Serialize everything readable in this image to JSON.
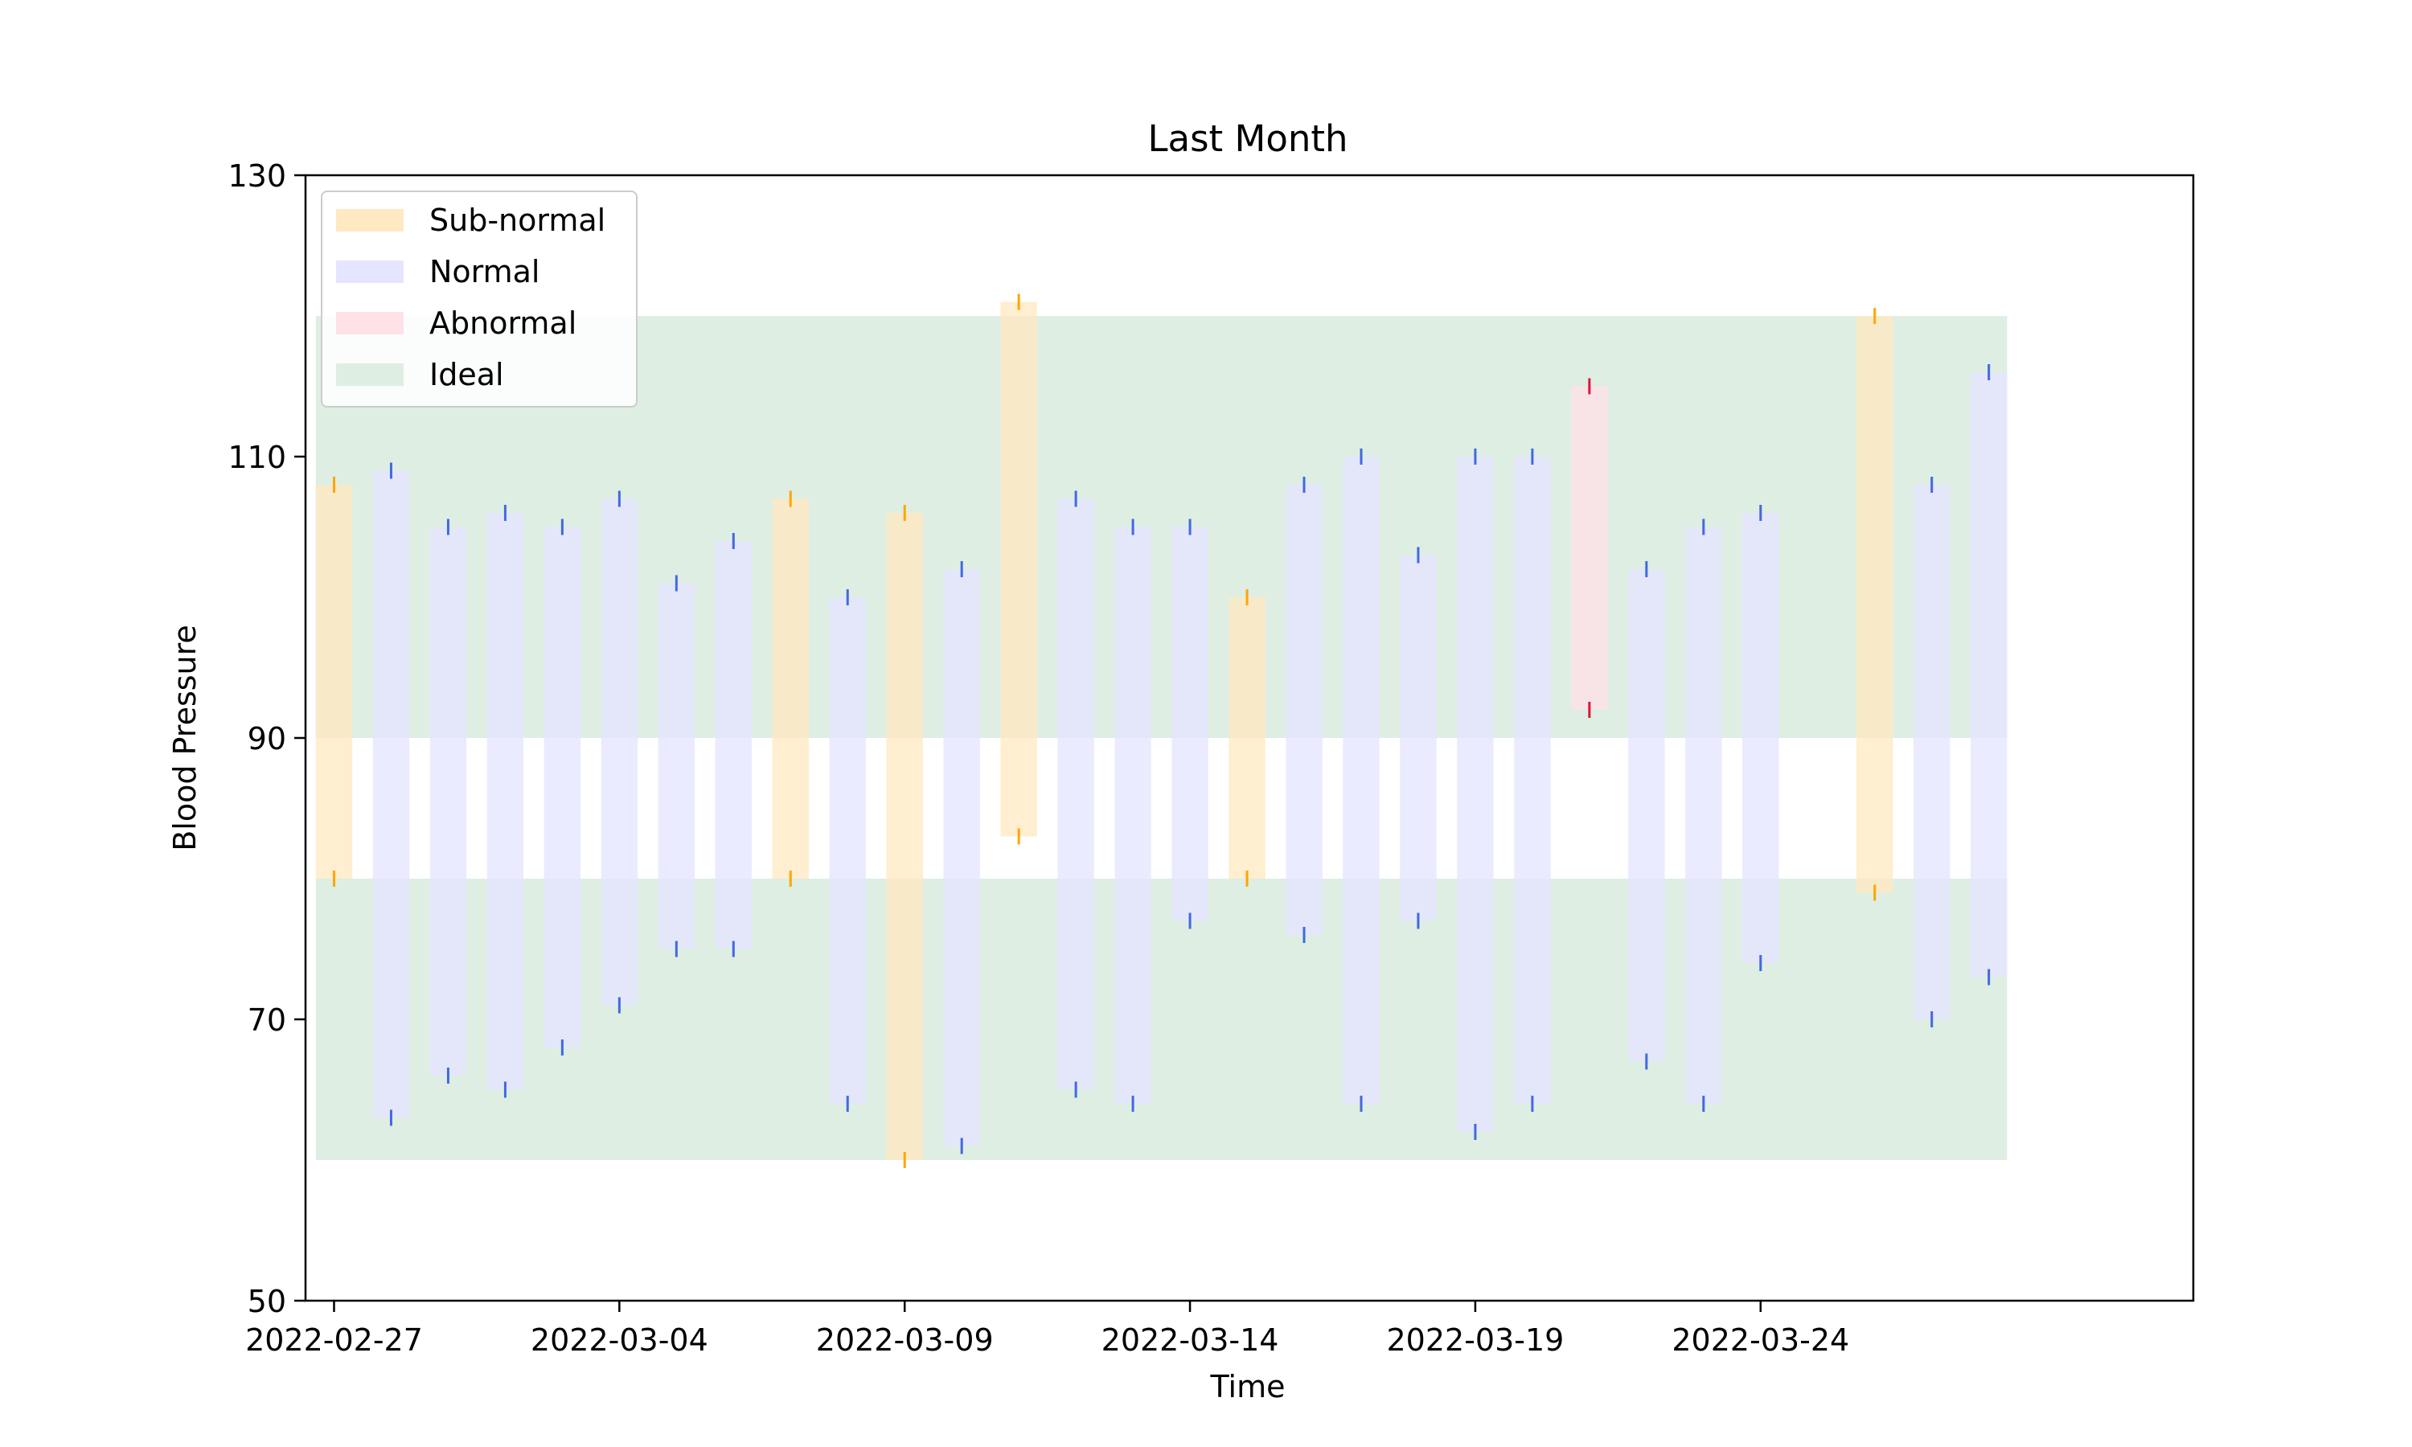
{
  "chart_data": {
    "type": "bar",
    "title": "Last Month",
    "xlabel": "Time",
    "ylabel": "Blood Pressure",
    "ylim": [
      50,
      130
    ],
    "yticks": [
      50,
      70,
      90,
      110,
      130
    ],
    "x_tick_labels": [
      "2022-02-27",
      "2022-03-04",
      "2022-03-09",
      "2022-03-14",
      "2022-03-19",
      "2022-03-24"
    ],
    "grid": false,
    "legend_position": "upper-left",
    "legend": [
      {
        "name": "Sub-normal",
        "color": "#ffe9c2"
      },
      {
        "name": "Normal",
        "color": "#e5e5ff"
      },
      {
        "name": "Abnormal",
        "color": "#ffe1e8"
      },
      {
        "name": "Ideal",
        "color": "#deeee3"
      }
    ],
    "ideal_band": {
      "x_start": "2022-02-27",
      "x_end": "2022-03-28",
      "systolic_range": [
        90,
        120
      ],
      "diastolic_range": [
        60,
        80
      ]
    },
    "category_colors": {
      "Sub-normal": {
        "bar": "#ffe9c2",
        "marker": "#ffa500"
      },
      "Normal": {
        "bar": "#e5e5ff",
        "marker": "#4169e1"
      },
      "Abnormal": {
        "bar": "#ffe1e8",
        "marker": "#dc143c"
      }
    },
    "readings": [
      {
        "date": "2022-02-27",
        "systolic": 108,
        "diastolic": 80,
        "category": "Sub-normal"
      },
      {
        "date": "2022-02-28",
        "systolic": 109,
        "diastolic": 63,
        "category": "Normal"
      },
      {
        "date": "2022-03-01",
        "systolic": 105,
        "diastolic": 66,
        "category": "Normal"
      },
      {
        "date": "2022-03-02",
        "systolic": 106,
        "diastolic": 65,
        "category": "Normal"
      },
      {
        "date": "2022-03-03",
        "systolic": 105,
        "diastolic": 68,
        "category": "Normal"
      },
      {
        "date": "2022-03-04",
        "systolic": 107,
        "diastolic": 71,
        "category": "Normal"
      },
      {
        "date": "2022-03-05",
        "systolic": 101,
        "diastolic": 75,
        "category": "Normal"
      },
      {
        "date": "2022-03-06",
        "systolic": 104,
        "diastolic": 75,
        "category": "Normal"
      },
      {
        "date": "2022-03-07",
        "systolic": 107,
        "diastolic": 80,
        "category": "Sub-normal"
      },
      {
        "date": "2022-03-08",
        "systolic": 100,
        "diastolic": 64,
        "category": "Normal"
      },
      {
        "date": "2022-03-09",
        "systolic": 106,
        "diastolic": 60,
        "category": "Sub-normal"
      },
      {
        "date": "2022-03-10",
        "systolic": 102,
        "diastolic": 61,
        "category": "Normal"
      },
      {
        "date": "2022-03-11",
        "systolic": 121,
        "diastolic": 83,
        "category": "Sub-normal"
      },
      {
        "date": "2022-03-12",
        "systolic": 107,
        "diastolic": 65,
        "category": "Normal"
      },
      {
        "date": "2022-03-13",
        "systolic": 105,
        "diastolic": 64,
        "category": "Normal"
      },
      {
        "date": "2022-03-14",
        "systolic": 105,
        "diastolic": 77,
        "category": "Normal"
      },
      {
        "date": "2022-03-15",
        "systolic": 100,
        "diastolic": 80,
        "category": "Sub-normal"
      },
      {
        "date": "2022-03-16",
        "systolic": 108,
        "diastolic": 76,
        "category": "Normal"
      },
      {
        "date": "2022-03-17",
        "systolic": 110,
        "diastolic": 64,
        "category": "Normal"
      },
      {
        "date": "2022-03-18",
        "systolic": 103,
        "diastolic": 77,
        "category": "Normal"
      },
      {
        "date": "2022-03-19",
        "systolic": 110,
        "diastolic": 62,
        "category": "Normal"
      },
      {
        "date": "2022-03-20",
        "systolic": 110,
        "diastolic": 64,
        "category": "Normal"
      },
      {
        "date": "2022-03-21",
        "systolic": 115,
        "diastolic": 92,
        "category": "Abnormal"
      },
      {
        "date": "2022-03-22",
        "systolic": 102,
        "diastolic": 67,
        "category": "Normal"
      },
      {
        "date": "2022-03-23",
        "systolic": 105,
        "diastolic": 64,
        "category": "Normal"
      },
      {
        "date": "2022-03-24",
        "systolic": 106,
        "diastolic": 74,
        "category": "Normal"
      },
      {
        "date": "2022-03-26",
        "systolic": 120,
        "diastolic": 79,
        "category": "Sub-normal"
      },
      {
        "date": "2022-03-27",
        "systolic": 108,
        "diastolic": 70,
        "category": "Normal"
      },
      {
        "date": "2022-03-28",
        "systolic": 116,
        "diastolic": 73,
        "category": "Normal"
      }
    ]
  }
}
